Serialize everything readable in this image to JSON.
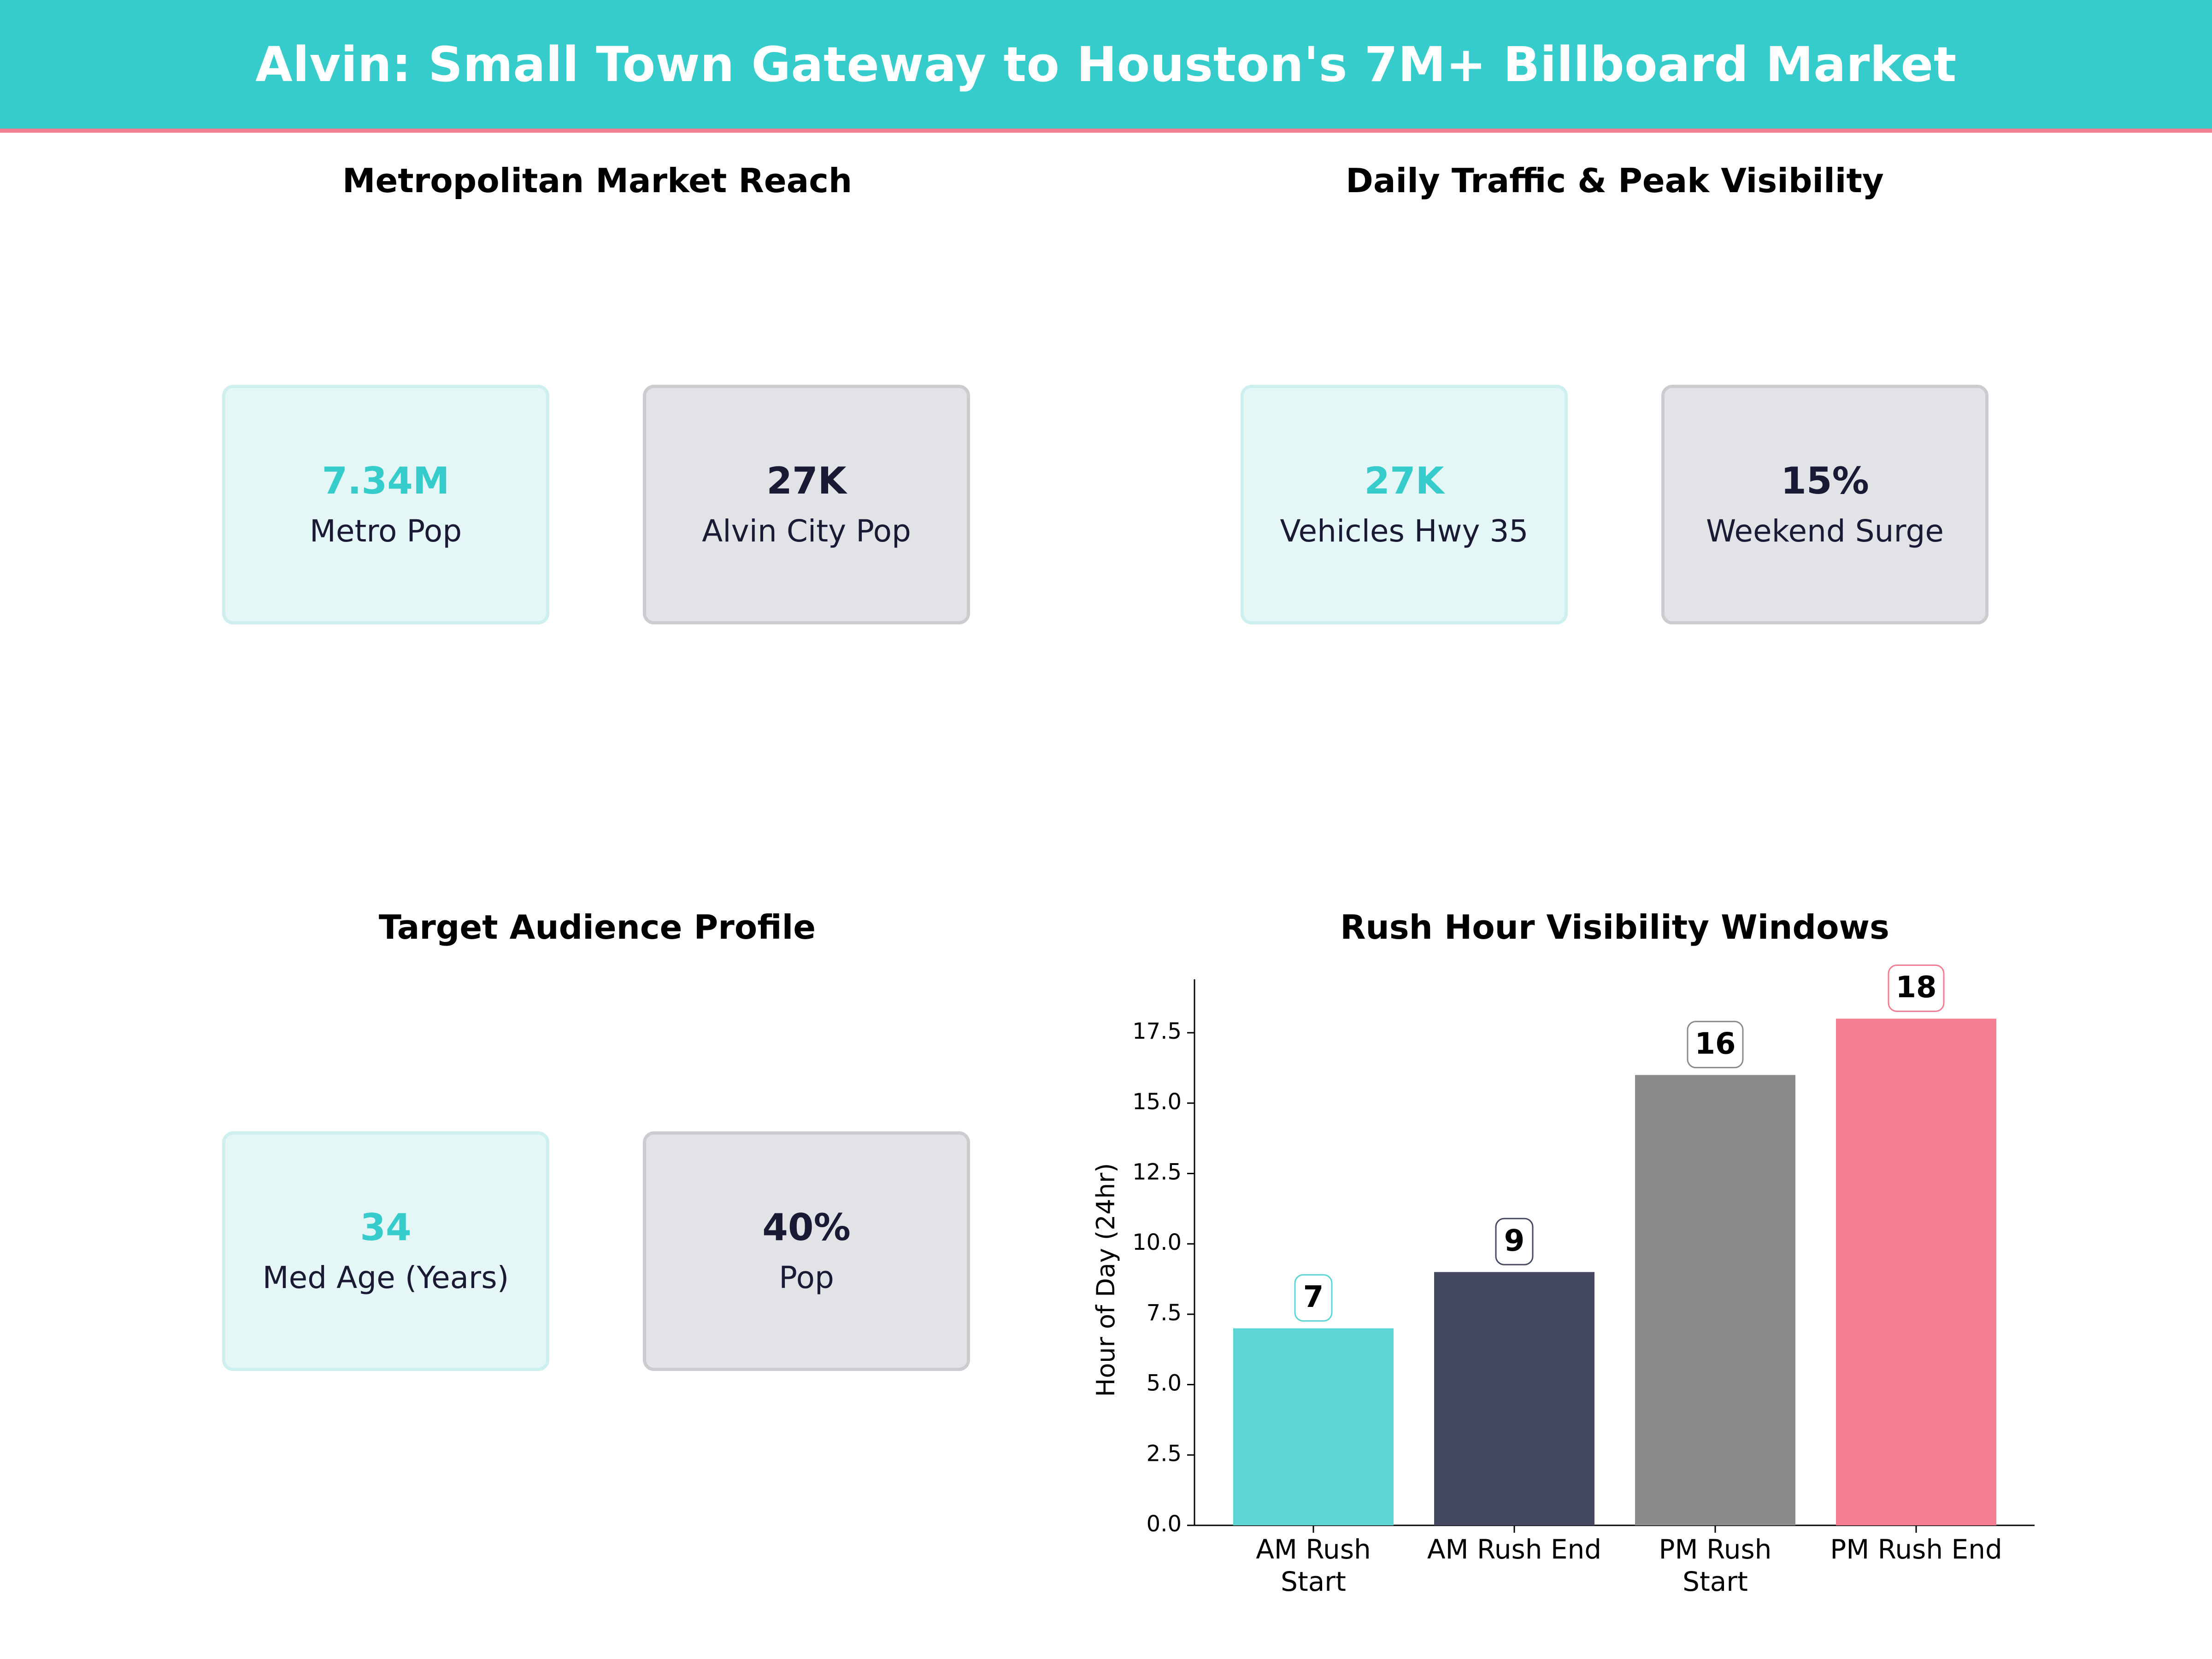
{
  "header": {
    "title": "Alvin: Small Town Gateway to Houston's 7M+ Billboard Market"
  },
  "panels": {
    "market_reach": {
      "title": "Metropolitan Market Reach",
      "cards": [
        {
          "value": "7.34M",
          "label": "Metro Pop"
        },
        {
          "value": "27K",
          "label": "Alvin City Pop"
        }
      ]
    },
    "traffic": {
      "title": "Daily Traffic & Peak Visibility",
      "cards": [
        {
          "value": "27K",
          "label": "Vehicles Hwy 35"
        },
        {
          "value": "15%",
          "label": "Weekend Surge"
        }
      ]
    },
    "audience": {
      "title": "Target Audience Profile",
      "cards": [
        {
          "value": "34",
          "label": "Med Age (Years)"
        },
        {
          "value": "40%",
          "label": "Pop"
        }
      ]
    },
    "rush_hour": {
      "title": "Rush Hour Visibility Windows"
    }
  },
  "colors": {
    "accent_teal": "#36cccc",
    "accent_pink": "#f07f93",
    "dark_navy": "#1a1a34"
  },
  "chart_data": {
    "type": "bar",
    "title": "Rush Hour Visibility Windows",
    "categories": [
      [
        "AM Rush",
        "Start"
      ],
      [
        "AM Rush End"
      ],
      [
        "PM Rush",
        "Start"
      ],
      [
        "PM Rush End"
      ]
    ],
    "values": [
      7,
      9,
      16,
      18
    ],
    "data_labels": [
      "7",
      "9",
      "16",
      "18"
    ],
    "bar_colors": [
      "#5bd6d4",
      "#45495f",
      "#8a8a8a",
      "#f47d92"
    ],
    "label_border_colors": [
      "#5bd6d4",
      "#45495f",
      "#8a8a8a",
      "#f47d92"
    ],
    "xlabel": "",
    "ylabel": "Hour of Day (24hr)",
    "ylim": [
      0,
      19.4
    ],
    "yticks": [
      "0.0",
      "2.5",
      "5.0",
      "7.5",
      "10.0",
      "12.5",
      "15.0",
      "17.5"
    ],
    "ytick_values": [
      0,
      2.5,
      5,
      7.5,
      10,
      12.5,
      15,
      17.5
    ],
    "grid": false
  }
}
